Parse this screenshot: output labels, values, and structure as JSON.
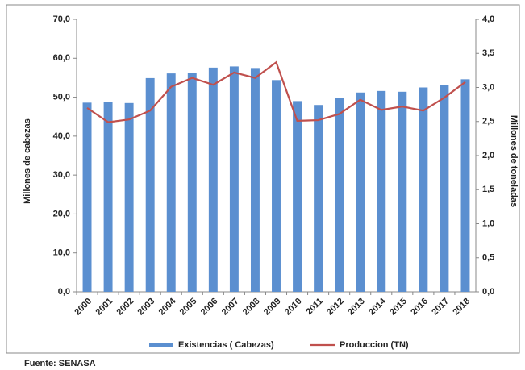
{
  "chart_data": {
    "type": "bar_line",
    "categories": [
      "2000",
      "2001",
      "2002",
      "2003",
      "2004",
      "2005",
      "2006",
      "2007",
      "2008",
      "2009",
      "2010",
      "2011",
      "2012",
      "2013",
      "2014",
      "2015",
      "2016",
      "2017",
      "2018"
    ],
    "series": [
      {
        "name": "Existencias ( Cabezas)",
        "color": "#5b8fd0",
        "type": "bar",
        "axis": "y",
        "values": [
          48.6,
          48.8,
          48.5,
          54.9,
          56.1,
          56.3,
          57.6,
          57.9,
          57.5,
          54.4,
          49.0,
          48.0,
          49.8,
          51.2,
          51.6,
          51.4,
          52.5,
          53.1,
          54.6
        ]
      },
      {
        "name": "Produccion (TN)",
        "color": "#c0504d",
        "type": "line",
        "axis": "y2",
        "values": [
          2.7,
          2.49,
          2.53,
          2.66,
          3.01,
          3.14,
          3.04,
          3.22,
          3.14,
          3.37,
          2.51,
          2.52,
          2.61,
          2.82,
          2.67,
          2.72,
          2.66,
          2.85,
          3.08
        ]
      }
    ],
    "ylabel": "Millones de cabezas",
    "y2label": "Millones de toneladas",
    "ylim": [
      0,
      70
    ],
    "yticks": [
      {
        "value": 0,
        "label": "0,0"
      },
      {
        "value": 10,
        "label": "10,0"
      },
      {
        "value": 20,
        "label": "20,0"
      },
      {
        "value": 30,
        "label": "30,0"
      },
      {
        "value": 40,
        "label": "40,0"
      },
      {
        "value": 50,
        "label": "50,0"
      },
      {
        "value": 60,
        "label": "60,0"
      },
      {
        "value": 70,
        "label": "70,0"
      }
    ],
    "y2lim": [
      0,
      4
    ],
    "y2ticks": [
      {
        "value": 0,
        "label": "0,0"
      },
      {
        "value": 0.5,
        "label": "0,5"
      },
      {
        "value": 1,
        "label": "1,0"
      },
      {
        "value": 1.5,
        "label": "1,5"
      },
      {
        "value": 2,
        "label": "2,0"
      },
      {
        "value": 2.5,
        "label": "2,5"
      },
      {
        "value": 3,
        "label": "3,0"
      },
      {
        "value": 3.5,
        "label": "3,5"
      },
      {
        "value": 4,
        "label": "4,0"
      }
    ],
    "grid": false,
    "legend": "bottom",
    "source": "Fuente: SENASA"
  }
}
